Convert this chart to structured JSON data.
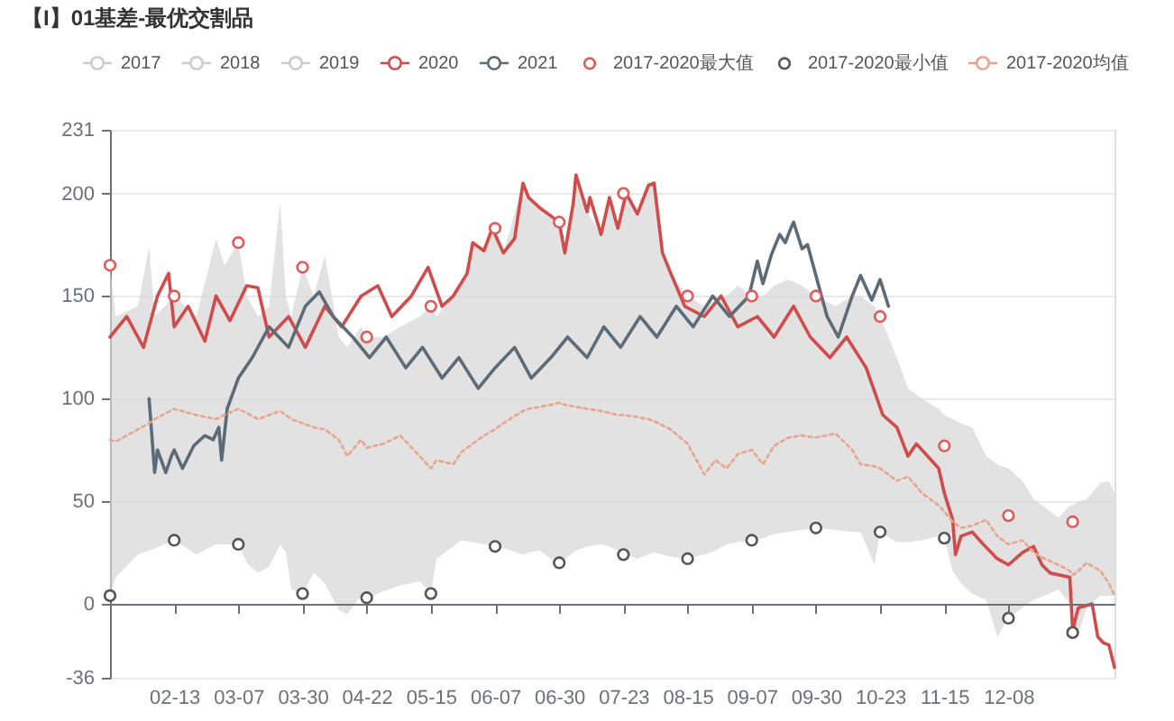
{
  "chart_data": {
    "type": "line",
    "title": "【I】01基差-最优交割品",
    "xlim": [
      "2020-01-21",
      "2021-01-15"
    ],
    "xticks": [
      {
        "value": "2020-02-13",
        "label": "02-13"
      },
      {
        "value": "2020-03-07",
        "label": "03-07"
      },
      {
        "value": "2020-03-30",
        "label": "03-30"
      },
      {
        "value": "2020-04-22",
        "label": "04-22"
      },
      {
        "value": "2020-05-15",
        "label": "05-15"
      },
      {
        "value": "2020-06-07",
        "label": "06-07"
      },
      {
        "value": "2020-06-30",
        "label": "06-30"
      },
      {
        "value": "2020-07-23",
        "label": "07-23"
      },
      {
        "value": "2020-08-15",
        "label": "08-15"
      },
      {
        "value": "2020-09-07",
        "label": "09-07"
      },
      {
        "value": "2020-09-30",
        "label": "09-30"
      },
      {
        "value": "2020-10-23",
        "label": "10-23"
      },
      {
        "value": "2020-11-15",
        "label": "11-15"
      },
      {
        "value": "2020-12-08",
        "label": "12-08"
      }
    ],
    "ylim": [
      -36,
      231
    ],
    "yticks": [
      -36,
      0,
      50,
      100,
      150,
      200,
      231
    ],
    "grid": "y",
    "legend": "top",
    "line_style": "solid",
    "series": [
      {
        "name": "2017",
        "color": "#cccccc"
      },
      {
        "name": "2018",
        "color": "#cccccc"
      },
      {
        "name": "2019",
        "color": "#cccccc"
      },
      {
        "name": "2020",
        "color": "#d14b4b",
        "x": [
          "2020-01-21",
          "2020-01-27",
          "2020-02-02",
          "2020-02-07",
          "2020-02-11",
          "2020-02-13",
          "2020-02-18",
          "2020-02-24",
          "2020-02-28",
          "2020-03-04",
          "2020-03-10",
          "2020-03-14",
          "2020-03-18",
          "2020-03-25",
          "2020-03-31",
          "2020-04-07",
          "2020-04-13",
          "2020-04-20",
          "2020-04-26",
          "2020-05-01",
          "2020-05-08",
          "2020-05-14",
          "2020-05-19",
          "2020-05-23",
          "2020-05-28",
          "2020-05-30",
          "2020-06-03",
          "2020-06-06",
          "2020-06-10",
          "2020-06-14",
          "2020-06-17",
          "2020-06-19",
          "2020-06-23",
          "2020-06-27",
          "2020-06-30",
          "2020-07-02",
          "2020-07-05",
          "2020-07-06",
          "2020-07-10",
          "2020-07-11",
          "2020-07-15",
          "2020-07-18",
          "2020-07-21",
          "2020-07-24",
          "2020-07-28",
          "2020-08-01",
          "2020-08-03",
          "2020-08-06",
          "2020-08-09",
          "2020-08-14",
          "2020-08-21",
          "2020-08-27",
          "2020-09-02",
          "2020-09-09",
          "2020-09-15",
          "2020-09-22",
          "2020-09-28",
          "2020-10-05",
          "2020-10-11",
          "2020-10-18",
          "2020-10-24",
          "2020-10-29",
          "2020-11-02",
          "2020-11-05",
          "2020-11-09",
          "2020-11-13",
          "2020-11-15",
          "2020-11-18",
          "2020-11-19",
          "2020-11-21",
          "2020-11-25",
          "2020-11-29",
          "2020-12-04",
          "2020-12-08",
          "2020-12-13",
          "2020-12-17",
          "2020-12-20",
          "2020-12-23",
          "2020-12-30",
          "2020-12-31",
          "2021-01-02",
          "2021-01-07",
          "2021-01-09",
          "2021-01-11",
          "2021-01-13",
          "2021-01-15"
        ],
        "values": [
          130,
          140,
          125,
          150,
          161,
          135,
          145,
          128,
          150,
          138,
          155,
          154,
          130,
          140,
          125,
          145,
          135,
          150,
          155,
          140,
          150,
          164,
          145,
          150,
          161,
          176,
          172,
          183,
          171,
          178,
          205,
          198,
          193,
          189,
          186,
          171,
          195,
          209,
          191,
          198,
          180,
          198,
          183,
          200,
          190,
          204,
          205,
          171,
          161,
          145,
          140,
          150,
          135,
          140,
          130,
          145,
          130,
          120,
          130,
          115,
          92,
          86,
          72,
          78,
          72,
          66,
          54,
          41,
          24,
          33,
          35,
          29,
          22,
          19,
          25,
          28,
          19,
          15,
          13,
          -13,
          -2,
          0,
          -16,
          -19,
          -20,
          -31
        ]
      },
      {
        "name": "2021",
        "color": "#5b6b78",
        "x": [
          "2020-02-04",
          "2020-02-06",
          "2020-02-07",
          "2020-02-10",
          "2020-02-12",
          "2020-02-13",
          "2020-02-16",
          "2020-02-20",
          "2020-02-24",
          "2020-02-27",
          "2020-02-29",
          "2020-03-01",
          "2020-03-03",
          "2020-03-07",
          "2020-03-12",
          "2020-03-18",
          "2020-03-25",
          "2020-03-31",
          "2020-04-05",
          "2020-04-10",
          "2020-04-17",
          "2020-04-23",
          "2020-04-29",
          "2020-05-06",
          "2020-05-12",
          "2020-05-19",
          "2020-05-25",
          "2020-06-01",
          "2020-06-07",
          "2020-06-14",
          "2020-06-20",
          "2020-06-27",
          "2020-07-03",
          "2020-07-10",
          "2020-07-16",
          "2020-07-22",
          "2020-07-29",
          "2020-08-04",
          "2020-08-11",
          "2020-08-17",
          "2020-08-24",
          "2020-08-30",
          "2020-09-06",
          "2020-09-09",
          "2020-09-11",
          "2020-09-14",
          "2020-09-17",
          "2020-09-19",
          "2020-09-21",
          "2020-09-22",
          "2020-09-25",
          "2020-09-27",
          "2020-09-30",
          "2020-10-04",
          "2020-10-08",
          "2020-10-13",
          "2020-10-16",
          "2020-10-20",
          "2020-10-23",
          "2020-10-26"
        ],
        "values": [
          100,
          64,
          75,
          64,
          72,
          75,
          66,
          77,
          82,
          80,
          86,
          70,
          95,
          110,
          120,
          135,
          125,
          145,
          152,
          140,
          130,
          120,
          130,
          115,
          125,
          110,
          120,
          105,
          115,
          125,
          110,
          120,
          130,
          120,
          135,
          125,
          140,
          130,
          145,
          135,
          150,
          140,
          150,
          167,
          156,
          170,
          180,
          176,
          183,
          186,
          173,
          175,
          160,
          140,
          130,
          150,
          160,
          148,
          158,
          145
        ]
      },
      {
        "name": "2017-2020最大值",
        "color": "#e05a5a",
        "type": "scatter",
        "x": [
          "2020-01-21",
          "2020-02-13",
          "2020-03-07",
          "2020-03-30",
          "2020-04-22",
          "2020-05-15",
          "2020-06-07",
          "2020-06-30",
          "2020-07-23",
          "2020-08-15",
          "2020-09-07",
          "2020-09-30",
          "2020-10-23",
          "2020-11-15",
          "2020-12-08",
          "2020-12-31"
        ],
        "values": [
          165,
          150,
          176,
          164,
          130,
          145,
          183,
          186,
          200,
          150,
          150,
          150,
          140,
          77,
          43,
          40
        ]
      },
      {
        "name": "2017-2020最小值",
        "color": "#555555",
        "type": "scatter",
        "x": [
          "2020-01-21",
          "2020-02-13",
          "2020-03-07",
          "2020-03-30",
          "2020-04-22",
          "2020-05-15",
          "2020-06-07",
          "2020-06-30",
          "2020-07-23",
          "2020-08-15",
          "2020-09-07",
          "2020-09-30",
          "2020-10-23",
          "2020-11-15",
          "2020-12-08",
          "2020-12-31"
        ],
        "values": [
          4,
          31,
          29,
          5,
          3,
          5,
          28,
          20,
          24,
          22,
          31,
          37,
          35,
          32,
          -7,
          -14
        ]
      },
      {
        "name": "2017-2020均值",
        "color": "#e8a58c",
        "line_style": "dotted",
        "x": [
          "2020-01-21",
          "2020-01-23",
          "2020-01-31",
          "2020-02-04",
          "2020-02-06",
          "2020-02-13",
          "2020-02-21",
          "2020-02-28",
          "2020-03-02",
          "2020-03-07",
          "2020-03-10",
          "2020-03-14",
          "2020-03-18",
          "2020-03-22",
          "2020-03-24",
          "2020-03-26",
          "2020-03-30",
          "2020-04-03",
          "2020-04-07",
          "2020-04-12",
          "2020-04-15",
          "2020-04-20",
          "2020-04-22",
          "2020-04-28",
          "2020-05-04",
          "2020-05-11",
          "2020-05-15",
          "2020-05-17",
          "2020-05-23",
          "2020-05-26",
          "2020-05-30",
          "2020-06-03",
          "2020-06-07",
          "2020-06-10",
          "2020-06-17",
          "2020-06-19",
          "2020-06-23",
          "2020-06-27",
          "2020-06-30",
          "2020-07-02",
          "2020-07-06",
          "2020-07-10",
          "2020-07-15",
          "2020-07-18",
          "2020-07-21",
          "2020-07-23",
          "2020-07-28",
          "2020-08-01",
          "2020-08-03",
          "2020-08-06",
          "2020-08-09",
          "2020-08-15",
          "2020-08-21",
          "2020-08-25",
          "2020-08-29",
          "2020-09-02",
          "2020-09-07",
          "2020-09-11",
          "2020-09-15",
          "2020-09-20",
          "2020-09-25",
          "2020-09-30",
          "2020-10-07",
          "2020-10-13",
          "2020-10-16",
          "2020-10-21",
          "2020-10-23",
          "2020-10-29",
          "2020-11-02",
          "2020-11-07",
          "2020-11-13",
          "2020-11-15",
          "2020-11-18",
          "2020-11-21",
          "2020-11-25",
          "2020-11-30",
          "2020-12-04",
          "2020-12-08",
          "2020-12-13",
          "2020-12-17",
          "2020-12-21",
          "2020-12-26",
          "2020-12-30",
          "2020-12-31",
          "2021-01-02",
          "2021-01-05",
          "2021-01-10",
          "2021-01-13",
          "2021-01-15"
        ],
        "values": [
          80,
          79,
          85,
          88,
          90,
          95,
          92,
          90,
          92,
          95,
          93,
          90,
          92,
          94,
          92,
          90,
          88,
          86,
          85,
          80,
          72,
          80,
          76,
          78,
          82,
          72,
          66,
          70,
          68,
          74,
          78,
          82,
          85,
          88,
          94,
          95,
          96,
          97,
          98,
          97,
          96,
          95,
          94,
          93,
          92,
          92,
          91,
          90,
          89,
          87,
          85,
          78,
          63,
          70,
          66,
          73,
          75,
          68,
          77,
          81,
          82,
          81,
          83,
          75,
          68,
          67,
          66,
          60,
          62,
          54,
          48,
          45,
          40,
          37,
          38,
          41,
          33,
          29,
          31,
          25,
          22,
          19,
          16,
          14,
          16,
          20,
          16,
          10,
          4
        ],
        "lower": [
          4,
          13,
          24,
          26,
          27,
          31,
          24,
          29,
          29,
          29,
          20,
          15,
          18,
          29,
          25,
          7,
          5,
          15,
          10,
          -3,
          -5,
          4,
          3,
          6,
          9,
          11,
          5,
          22,
          28,
          31,
          30,
          29,
          28,
          27,
          24,
          25,
          26,
          22,
          20,
          22,
          26,
          28,
          29,
          28,
          26,
          24,
          22,
          24,
          25,
          24,
          23,
          22,
          24,
          26,
          29,
          30,
          31,
          32,
          34,
          35,
          36,
          37,
          36,
          35,
          35,
          19,
          35,
          30,
          30,
          31,
          33,
          32,
          16,
          10,
          5,
          2,
          -16,
          -7,
          -2,
          2,
          4,
          7,
          0,
          -14,
          -15,
          -2,
          4,
          4,
          4
        ],
        "upper": [
          165,
          140,
          145,
          174,
          140,
          150,
          140,
          178,
          165,
          176,
          150,
          140,
          145,
          196,
          150,
          140,
          164,
          150,
          170,
          130,
          125,
          135,
          130,
          130,
          135,
          140,
          145,
          140,
          150,
          155,
          176,
          172,
          183,
          171,
          205,
          198,
          193,
          189,
          186,
          171,
          209,
          191,
          180,
          198,
          183,
          200,
          190,
          204,
          205,
          171,
          161,
          150,
          145,
          148,
          150,
          155,
          150,
          150,
          155,
          158,
          155,
          150,
          145,
          150,
          150,
          145,
          140,
          120,
          105,
          100,
          95,
          92,
          90,
          88,
          86,
          72,
          68,
          66,
          60,
          51,
          47,
          42,
          48,
          48,
          50,
          51,
          59,
          60,
          54
        ]
      }
    ]
  }
}
